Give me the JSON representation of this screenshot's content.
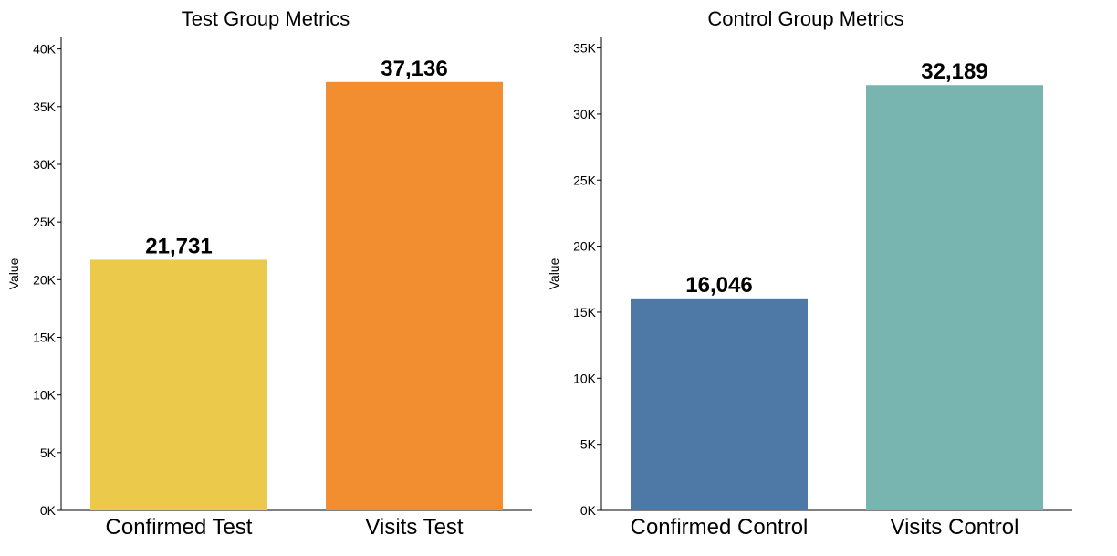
{
  "chart_data": [
    {
      "type": "bar",
      "title": "Test Group Metrics",
      "xlabel": "",
      "ylabel": "Value",
      "categories": [
        "Confirmed Test",
        "Visits Test"
      ],
      "values": [
        21731,
        37136
      ],
      "data_labels": [
        "21,731",
        "37,136"
      ],
      "colors": [
        "#ebc94a",
        "#f28e2f"
      ],
      "ylim": [
        0,
        41000
      ],
      "yticks": [
        0,
        5000,
        10000,
        15000,
        20000,
        25000,
        30000,
        35000,
        40000
      ],
      "ytick_labels": [
        "0K",
        "5K",
        "10K",
        "15K",
        "20K",
        "25K",
        "30K",
        "35K",
        "40K"
      ],
      "grid": false,
      "legend": "none"
    },
    {
      "type": "bar",
      "title": "Control Group Metrics",
      "xlabel": "",
      "ylabel": "Value",
      "categories": [
        "Confirmed Control",
        "Visits Control"
      ],
      "values": [
        16046,
        32189
      ],
      "data_labels": [
        "16,046",
        "32,189"
      ],
      "colors": [
        "#4e79a6",
        "#78b5b0"
      ],
      "ylim": [
        0,
        35800
      ],
      "yticks": [
        0,
        5000,
        10000,
        15000,
        20000,
        25000,
        30000,
        35000
      ],
      "ytick_labels": [
        "0K",
        "5K",
        "10K",
        "15K",
        "20K",
        "25K",
        "30K",
        "35K"
      ],
      "grid": false,
      "legend": "none"
    }
  ]
}
